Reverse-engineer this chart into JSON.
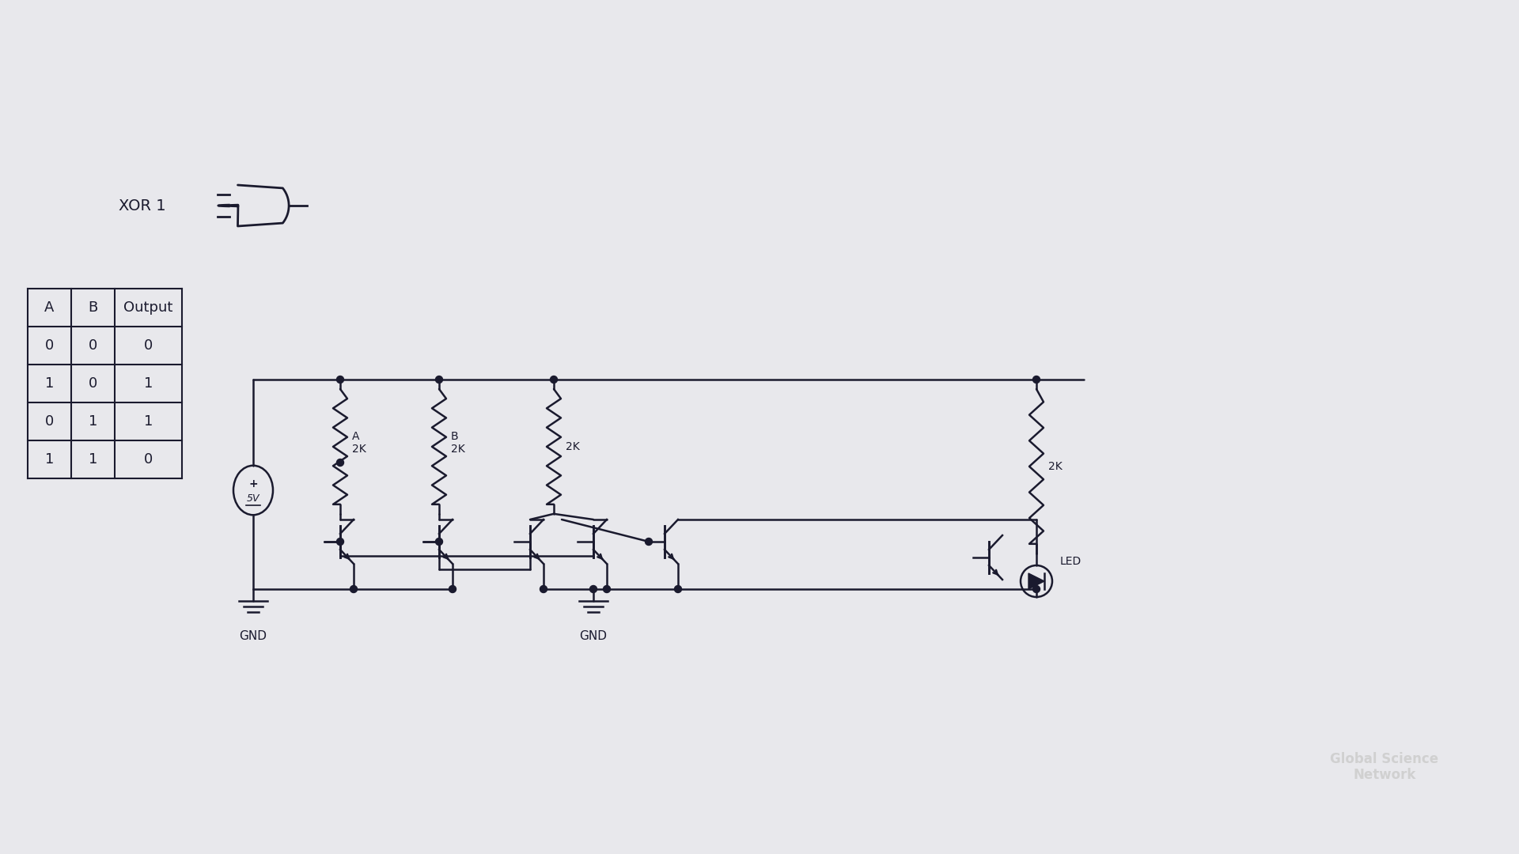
{
  "bg_color": "#e8e8ec",
  "line_color": "#1a1a2e",
  "text_color": "#1a1a2e",
  "title": "XOR 1",
  "truth_table": {
    "headers": [
      "A",
      "B",
      "Output"
    ],
    "rows": [
      [
        0,
        0,
        0
      ],
      [
        1,
        0,
        1
      ],
      [
        0,
        1,
        1
      ],
      [
        1,
        1,
        0
      ]
    ]
  },
  "circuit_labels": {
    "voltage": "5V",
    "resistors": [
      "A\n2K",
      "B\n2K",
      "2K",
      "2K"
    ],
    "gnd_labels": [
      "GND",
      "GND"
    ],
    "led_label": "LED"
  },
  "watermark": "Global Science\nNetwork"
}
